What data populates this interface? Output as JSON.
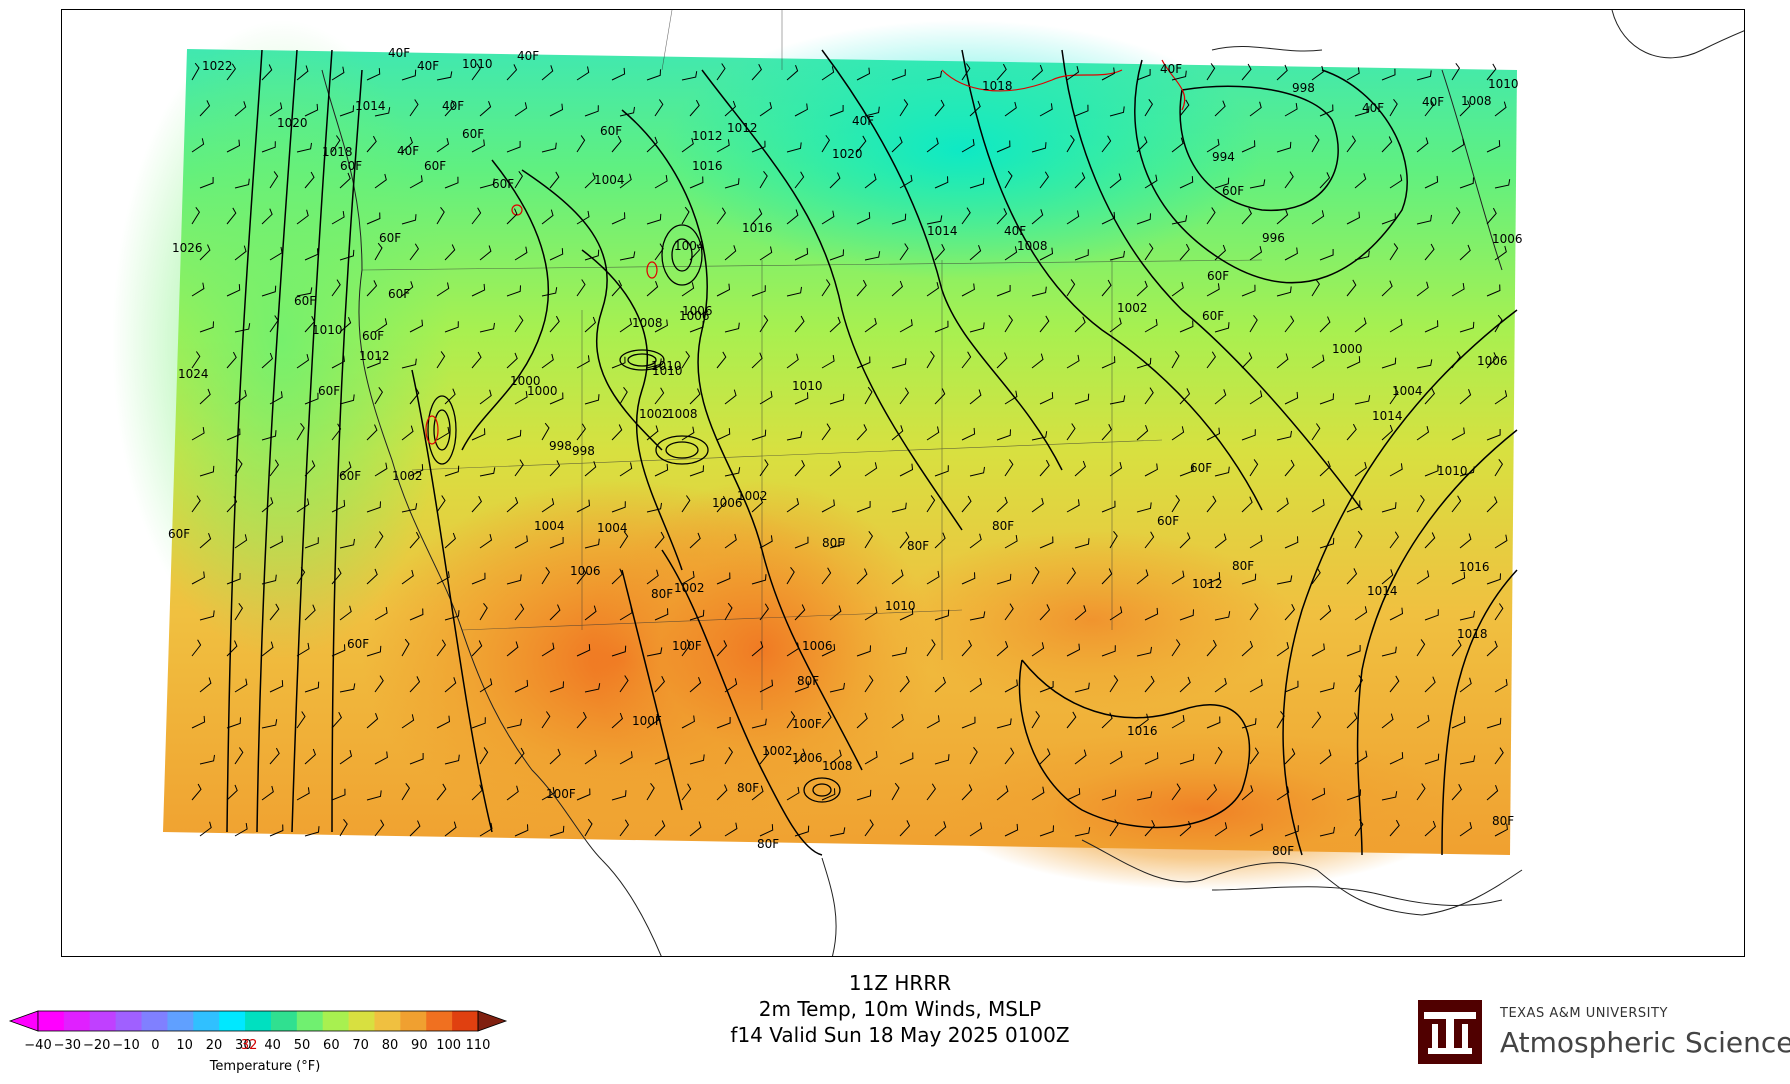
{
  "product": {
    "model_run": "11Z HRRR",
    "fields": "2m Temp, 10m Winds, MSLP",
    "valid": "f14 Valid Sun 18 May 2025 0100Z"
  },
  "colorbar": {
    "label": "Temperature (°F)",
    "ticks": [
      "-40",
      "-30",
      "-20",
      "-10",
      "0",
      "10",
      "20",
      "30",
      "32",
      "40",
      "50",
      "60",
      "70",
      "80",
      "90",
      "100",
      "110"
    ],
    "highlight_tick": "32",
    "colors": [
      "#ff00ff",
      "#e020ff",
      "#c040ff",
      "#a060ff",
      "#8080ff",
      "#60a0ff",
      "#30c0ff",
      "#00e8ff",
      "#00e0c0",
      "#30e090",
      "#70f070",
      "#a8f050",
      "#d8e040",
      "#f0c040",
      "#f0a030",
      "#f07020",
      "#e04010"
    ],
    "highlight_color": "#d00000"
  },
  "logo": {
    "organization": "TEXAS A&M UNIVERSITY",
    "department": "Atmospheric Sciences",
    "mark_color": "#500000"
  },
  "map": {
    "isobar_labels": [
      "1022",
      "1010",
      "1014",
      "1016",
      "1020",
      "1018",
      "1026",
      "1024",
      "1012",
      "1010",
      "1004",
      "1004",
      "1006",
      "1000",
      "998",
      "1002",
      "1004",
      "1006",
      "1002",
      "1010",
      "1008",
      "1006",
      "1010",
      "1008",
      "1010",
      "1002",
      "1000",
      "1002",
      "998",
      "1004",
      "1006",
      "1010",
      "1006",
      "1012",
      "1020",
      "1016",
      "1014",
      "1018",
      "1002",
      "1014",
      "1008",
      "996",
      "994",
      "998",
      "1000",
      "1004",
      "1006",
      "1006",
      "1010",
      "1012",
      "1014",
      "1016",
      "1018",
      "1016",
      "1010",
      "1008",
      "1006",
      "1002",
      "1008",
      "1012"
    ],
    "temp_labels": [
      "40F",
      "40F",
      "40F",
      "40F",
      "40F",
      "40F",
      "40F",
      "40F",
      "40F",
      "40F",
      "60F",
      "60F",
      "60F",
      "60F",
      "60F",
      "60F",
      "60F",
      "60F",
      "60F",
      "60F",
      "60F",
      "60F",
      "60F",
      "60F",
      "60F",
      "60F",
      "60F",
      "60F",
      "80F",
      "80F",
      "80F",
      "80F",
      "80F",
      "80F",
      "80F",
      "80F",
      "80F",
      "80F",
      "100F",
      "100F",
      "100F",
      "100F"
    ]
  }
}
